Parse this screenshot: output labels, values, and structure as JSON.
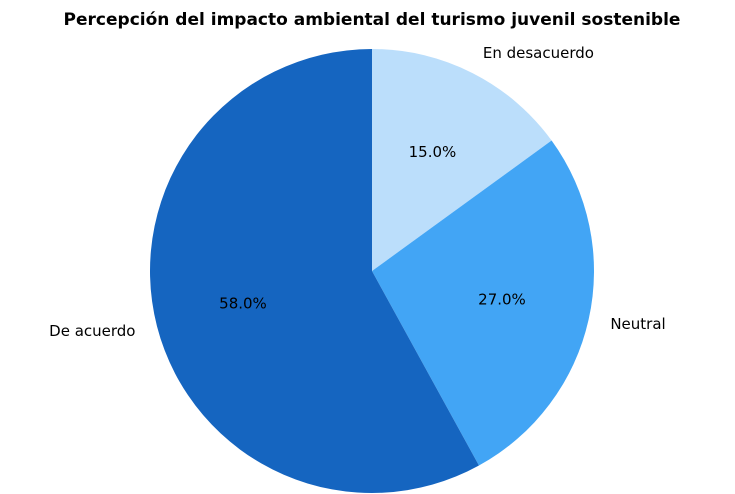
{
  "chart_data": {
    "type": "pie",
    "title": "Percepción del impacto ambiental del turismo juvenil sostenible",
    "categories": [
      "En desacuerdo",
      "Neutral",
      "De acuerdo"
    ],
    "values": [
      15,
      27,
      58
    ],
    "value_labels": [
      "15.0%",
      "27.0%",
      "58.0%"
    ],
    "colors": [
      "#bbdefb",
      "#42a5f5",
      "#1565c0"
    ]
  }
}
